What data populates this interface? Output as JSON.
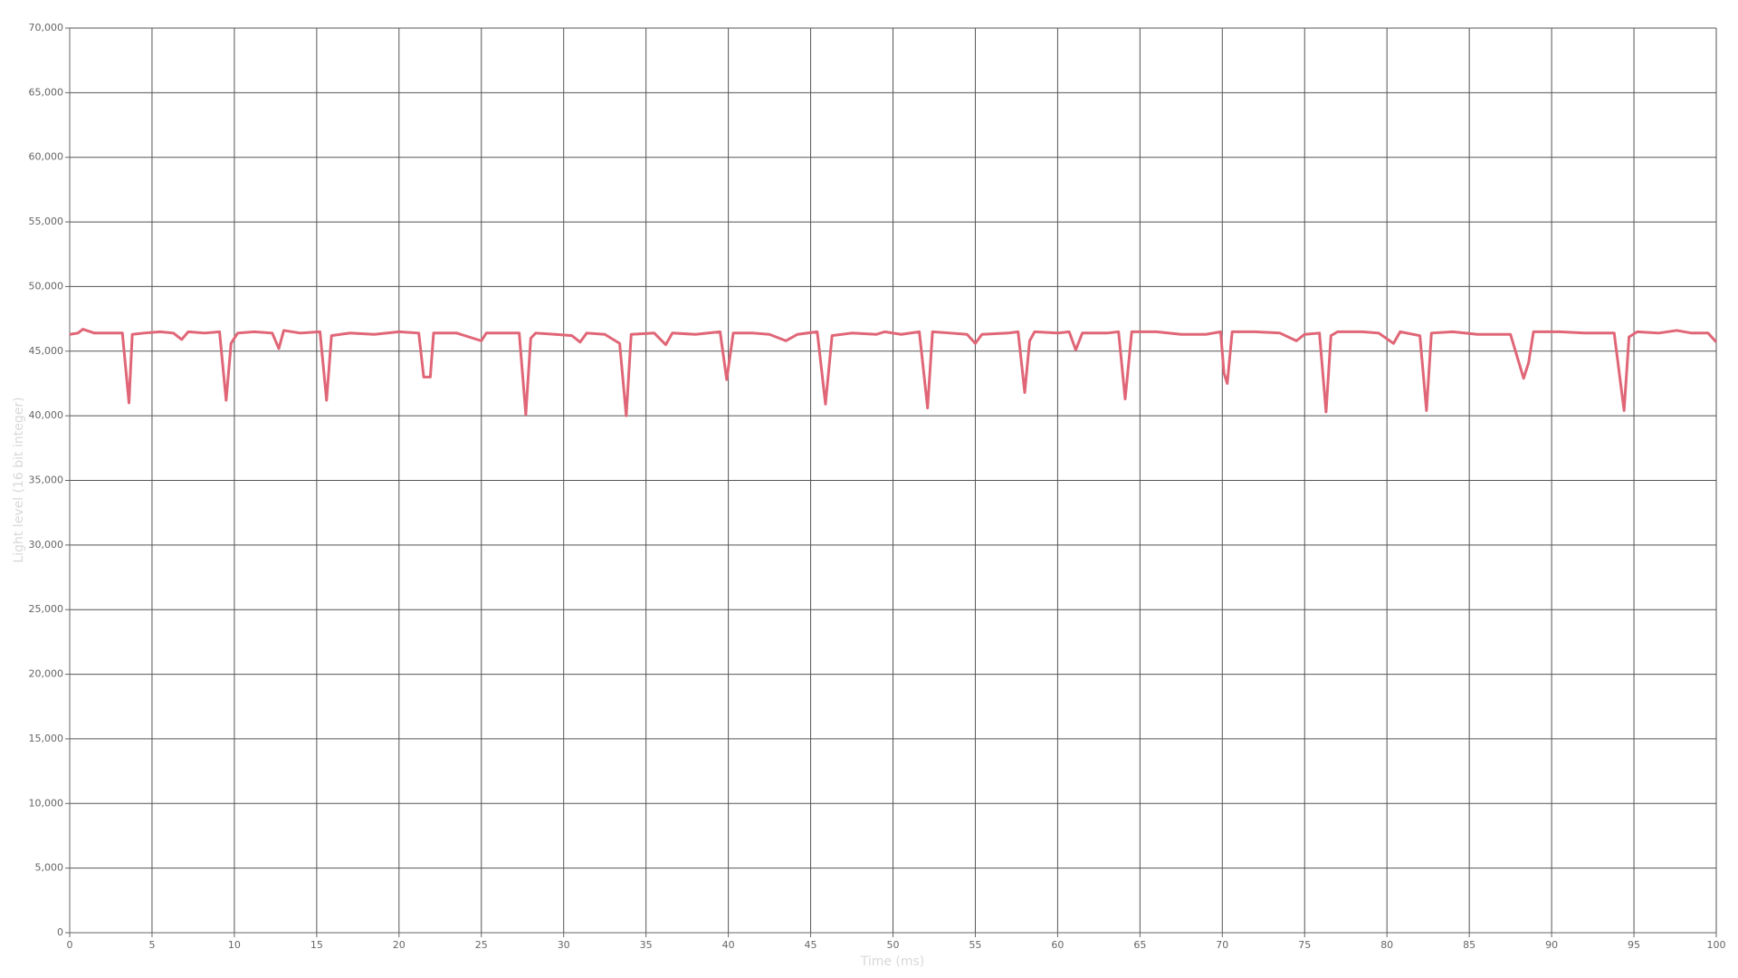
{
  "chart_data": {
    "type": "line",
    "x_label": "Time (ms)",
    "y_label": "Light level (16 bit integer)",
    "color": "#e06677",
    "grid": true,
    "xlim": [
      0,
      100
    ],
    "xticks": [
      0,
      5,
      10,
      15,
      20,
      25,
      30,
      35,
      40,
      45,
      50,
      55,
      60,
      65,
      70,
      75,
      80,
      85,
      90,
      95,
      100
    ],
    "ylim": [
      0,
      70000
    ],
    "yticks": [
      {
        "value": 0,
        "label": "0"
      },
      {
        "value": 5000,
        "label": "5,000"
      },
      {
        "value": 10000,
        "label": "10,000"
      },
      {
        "value": 15000,
        "label": "15,000"
      },
      {
        "value": 20000,
        "label": "20,000"
      },
      {
        "value": 25000,
        "label": "25,000"
      },
      {
        "value": 30000,
        "label": "30,000"
      },
      {
        "value": 35000,
        "label": "35,000"
      },
      {
        "value": 40000,
        "label": "40,000"
      },
      {
        "value": 45000,
        "label": "45,000"
      },
      {
        "value": 50000,
        "label": "50,000"
      },
      {
        "value": 55000,
        "label": "55,000"
      },
      {
        "value": 60000,
        "label": "60,000"
      },
      {
        "value": 65000,
        "label": "65,000"
      },
      {
        "value": 70000,
        "label": "70,000"
      }
    ],
    "x": [
      0,
      0.5,
      0.8,
      1.5,
      2.5,
      3.2,
      3.6,
      3.8,
      4.5,
      5.5,
      6.3,
      6.8,
      7.2,
      8.2,
      9.1,
      9.5,
      9.8,
      10.2,
      11.2,
      12.3,
      12.7,
      13.0,
      14.0,
      15.2,
      15.6,
      15.9,
      17.0,
      18.5,
      20.0,
      21.2,
      21.5,
      21.9,
      22.1,
      23.5,
      25.0,
      25.3,
      26.5,
      27.3,
      27.7,
      28.0,
      28.3,
      29.5,
      30.5,
      31.0,
      31.4,
      32.5,
      33.4,
      33.8,
      34.1,
      35.5,
      36.2,
      36.6,
      38.0,
      39.5,
      39.9,
      40.3,
      41.5,
      42.5,
      43.5,
      44.2,
      45.4,
      45.9,
      46.3,
      47.5,
      49.0,
      49.5,
      50.5,
      51.6,
      52.1,
      52.4,
      53.5,
      54.5,
      55.0,
      55.4,
      57.0,
      57.6,
      58.0,
      58.3,
      58.6,
      60.0,
      60.7,
      61.1,
      61.5,
      63.0,
      63.7,
      64.1,
      64.5,
      66.0,
      67.5,
      69.0,
      69.9,
      70.1,
      70.3,
      70.6,
      72.0,
      73.5,
      74.5,
      75.0,
      75.9,
      76.3,
      76.6,
      77.0,
      78.5,
      79.5,
      80.4,
      80.8,
      82.0,
      82.4,
      82.7,
      84.0,
      85.5,
      87.5,
      88.3,
      88.6,
      88.9,
      90.5,
      92.0,
      93.8,
      94.4,
      94.7,
      95.2,
      96.5,
      97.6,
      98.5,
      99.5,
      100
    ],
    "values": [
      46300,
      46400,
      46700,
      46400,
      46400,
      46400,
      41000,
      46300,
      46400,
      46500,
      46400,
      45900,
      46500,
      46400,
      46500,
      41200,
      45600,
      46400,
      46500,
      46400,
      45200,
      46600,
      46400,
      46500,
      41200,
      46200,
      46400,
      46300,
      46500,
      46400,
      43000,
      43000,
      46400,
      46400,
      45800,
      46400,
      46400,
      46400,
      40100,
      46000,
      46400,
      46300,
      46200,
      45700,
      46400,
      46300,
      45600,
      40000,
      46300,
      46400,
      45500,
      46400,
      46300,
      46500,
      42800,
      46400,
      46400,
      46300,
      45800,
      46300,
      46500,
      40900,
      46200,
      46400,
      46300,
      46500,
      46300,
      46500,
      40600,
      46500,
      46400,
      46300,
      45600,
      46300,
      46400,
      46500,
      41800,
      45800,
      46500,
      46400,
      46500,
      45100,
      46400,
      46400,
      46500,
      41300,
      46500,
      46500,
      46300,
      46300,
      46500,
      43300,
      42500,
      46500,
      46500,
      46400,
      45800,
      46300,
      46400,
      40300,
      46200,
      46500,
      46500,
      46400,
      45600,
      46500,
      46200,
      40400,
      46400,
      46500,
      46300,
      46300,
      42900,
      44100,
      46500,
      46500,
      46400,
      46400,
      40400,
      46100,
      46500,
      46400,
      46600,
      46400,
      46400,
      45700
    ]
  }
}
